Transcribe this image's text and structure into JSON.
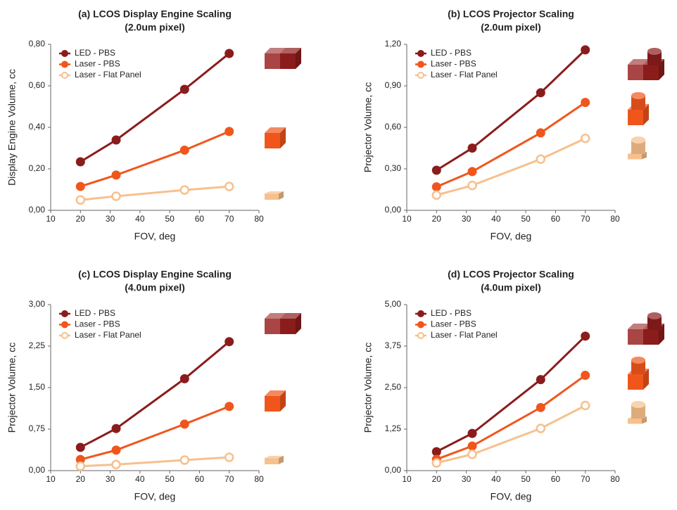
{
  "chart_data": [
    {
      "type": "line",
      "title": "(a) LCOS Display Engine Scaling",
      "subtitle": "(2.0um pixel)",
      "x_label": "FOV, deg",
      "y_label": "Display Engine Volume, cc",
      "x": [
        20,
        32,
        55,
        70
      ],
      "xlim": [
        10,
        80
      ],
      "xticks": [
        10,
        20,
        30,
        40,
        50,
        60,
        70,
        80
      ],
      "ylim": [
        0,
        0.8
      ],
      "yticks": [
        {
          "value": 0,
          "label": "0,00"
        },
        {
          "value": 0.2,
          "label": "0,20"
        },
        {
          "value": 0.4,
          "label": "0,40"
        },
        {
          "value": 0.6,
          "label": "0,60"
        },
        {
          "value": 0.8,
          "label": "0,80"
        }
      ],
      "series": [
        {
          "name": "LED - PBS",
          "color": "#8b1c1c",
          "values": [
            0.234,
            0.339,
            0.583,
            0.756
          ]
        },
        {
          "name": "Laser - PBS",
          "color": "#f0561c",
          "values": [
            0.115,
            0.17,
            0.29,
            0.38
          ]
        },
        {
          "name": "Laser - Flat Panel",
          "color": "#f7c08c",
          "hollow": true,
          "values": [
            0.05,
            0.068,
            0.098,
            0.115
          ]
        }
      ]
    },
    {
      "type": "line",
      "title": "(b) LCOS Projector Scaling",
      "subtitle": "(2.0um pixel)",
      "x_label": "FOV, deg",
      "y_label": "Projector Volume, cc",
      "x": [
        20,
        32,
        55,
        70
      ],
      "xlim": [
        10,
        80
      ],
      "xticks": [
        10,
        20,
        30,
        40,
        50,
        60,
        70,
        80
      ],
      "ylim": [
        0,
        1.2
      ],
      "yticks": [
        {
          "value": 0,
          "label": "0,00"
        },
        {
          "value": 0.3,
          "label": "0,30"
        },
        {
          "value": 0.6,
          "label": "0,60"
        },
        {
          "value": 0.9,
          "label": "0,90"
        },
        {
          "value": 1.2,
          "label": "1,20"
        }
      ],
      "series": [
        {
          "name": "LED - PBS",
          "color": "#8b1c1c",
          "values": [
            0.29,
            0.45,
            0.85,
            1.16
          ]
        },
        {
          "name": "Laser - PBS",
          "color": "#f0561c",
          "values": [
            0.17,
            0.28,
            0.56,
            0.78
          ]
        },
        {
          "name": "Laser - Flat Panel",
          "color": "#f7c08c",
          "hollow": true,
          "values": [
            0.11,
            0.18,
            0.37,
            0.52
          ]
        }
      ]
    },
    {
      "type": "line",
      "title": "(c) LCOS Display Engine Scaling",
      "subtitle": "(4.0um pixel)",
      "x_label": "FOV, deg",
      "y_label": "Projector Volume, cc",
      "x": [
        20,
        32,
        55,
        70
      ],
      "xlim": [
        10,
        80
      ],
      "xticks": [
        10,
        20,
        30,
        40,
        50,
        60,
        70,
        80
      ],
      "ylim": [
        0,
        3
      ],
      "yticks": [
        {
          "value": 0,
          "label": "0,00"
        },
        {
          "value": 0.75,
          "label": "0,75"
        },
        {
          "value": 1.5,
          "label": "1,50"
        },
        {
          "value": 2.25,
          "label": "2,25"
        },
        {
          "value": 3,
          "label": "3,00"
        }
      ],
      "series": [
        {
          "name": "LED - PBS",
          "color": "#8b1c1c",
          "values": [
            0.42,
            0.76,
            1.66,
            2.33
          ]
        },
        {
          "name": "Laser - PBS",
          "color": "#f0561c",
          "values": [
            0.2,
            0.37,
            0.84,
            1.16
          ]
        },
        {
          "name": "Laser - Flat Panel",
          "color": "#f7c08c",
          "hollow": true,
          "values": [
            0.08,
            0.11,
            0.19,
            0.24
          ]
        }
      ]
    },
    {
      "type": "line",
      "title": "(d) LCOS Projector Scaling",
      "subtitle": "(4.0um pixel)",
      "x_label": "FOV, deg",
      "y_label": "Projector Volume, cc",
      "x": [
        20,
        32,
        55,
        70
      ],
      "xlim": [
        10,
        80
      ],
      "xticks": [
        10,
        20,
        30,
        40,
        50,
        60,
        70,
        80
      ],
      "ylim": [
        0,
        5
      ],
      "yticks": [
        {
          "value": 0,
          "label": "0,00"
        },
        {
          "value": 1.25,
          "label": "1,25"
        },
        {
          "value": 2.5,
          "label": "2,50"
        },
        {
          "value": 3.75,
          "label": "3,75"
        },
        {
          "value": 5,
          "label": "5,00"
        }
      ],
      "series": [
        {
          "name": "LED - PBS",
          "color": "#8b1c1c",
          "values": [
            0.57,
            1.12,
            2.74,
            4.05
          ]
        },
        {
          "name": "Laser - PBS",
          "color": "#f0561c",
          "values": [
            0.34,
            0.74,
            1.9,
            2.87
          ]
        },
        {
          "name": "Laser - Flat Panel",
          "color": "#f7c08c",
          "hollow": true,
          "values": [
            0.23,
            0.49,
            1.27,
            1.96
          ]
        }
      ]
    }
  ]
}
